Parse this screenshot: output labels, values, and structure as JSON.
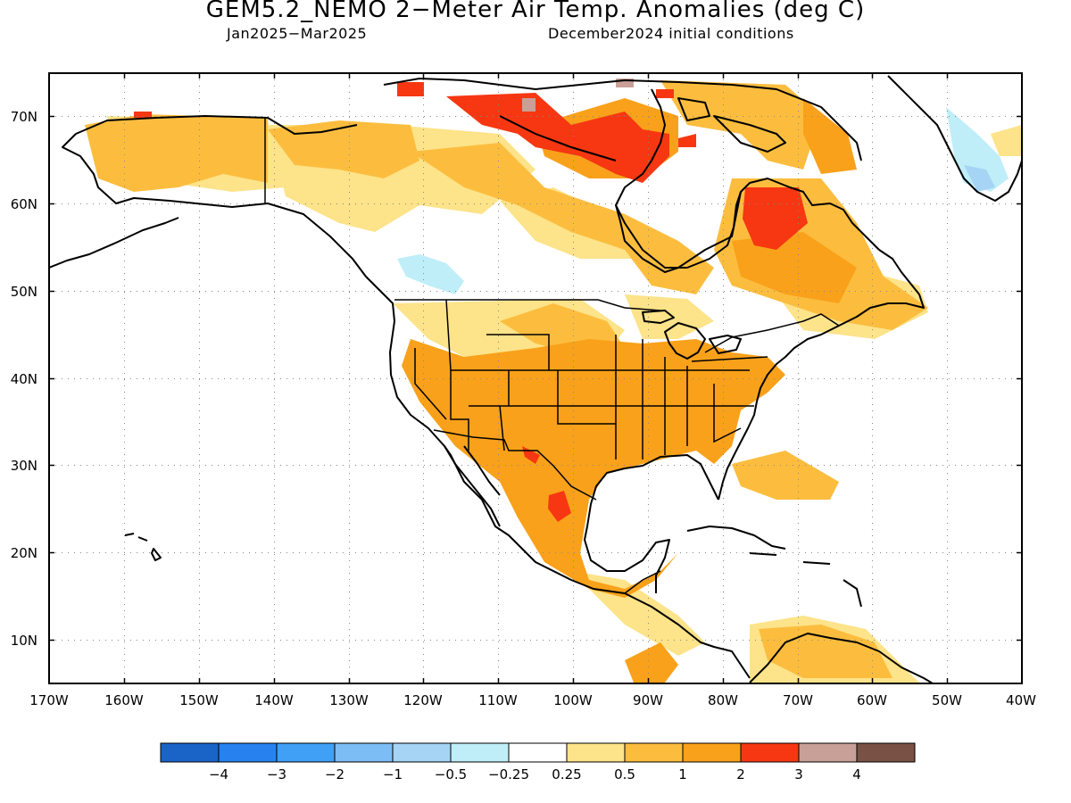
{
  "title": "GEM5.2_NEMO 2−Meter Air Temp. Anomalies (deg C)",
  "period": "Jan2025−Mar2025",
  "init_conditions": "December2024 initial conditions",
  "lat_labels": [
    "70N",
    "60N",
    "50N",
    "40N",
    "30N",
    "20N",
    "10N"
  ],
  "lon_labels": [
    "170W",
    "160W",
    "150W",
    "140W",
    "130W",
    "120W",
    "110W",
    "100W",
    "90W",
    "80W",
    "70W",
    "60W",
    "50W",
    "40W"
  ],
  "legend": {
    "colors": [
      "#1a64c8",
      "#2782f0",
      "#3fa0f5",
      "#7dbdf5",
      "#a5d4f5",
      "#bfeef9",
      "#ffffff",
      "#fde389",
      "#fcbd3e",
      "#f9a11a",
      "#f63712",
      "#c8a097",
      "#7a5145"
    ],
    "labels": [
      "−4",
      "−3",
      "−2",
      "−1",
      "−0.5",
      "−0.25",
      "0.25",
      "0.5",
      "1",
      "2",
      "3",
      "4"
    ]
  }
}
